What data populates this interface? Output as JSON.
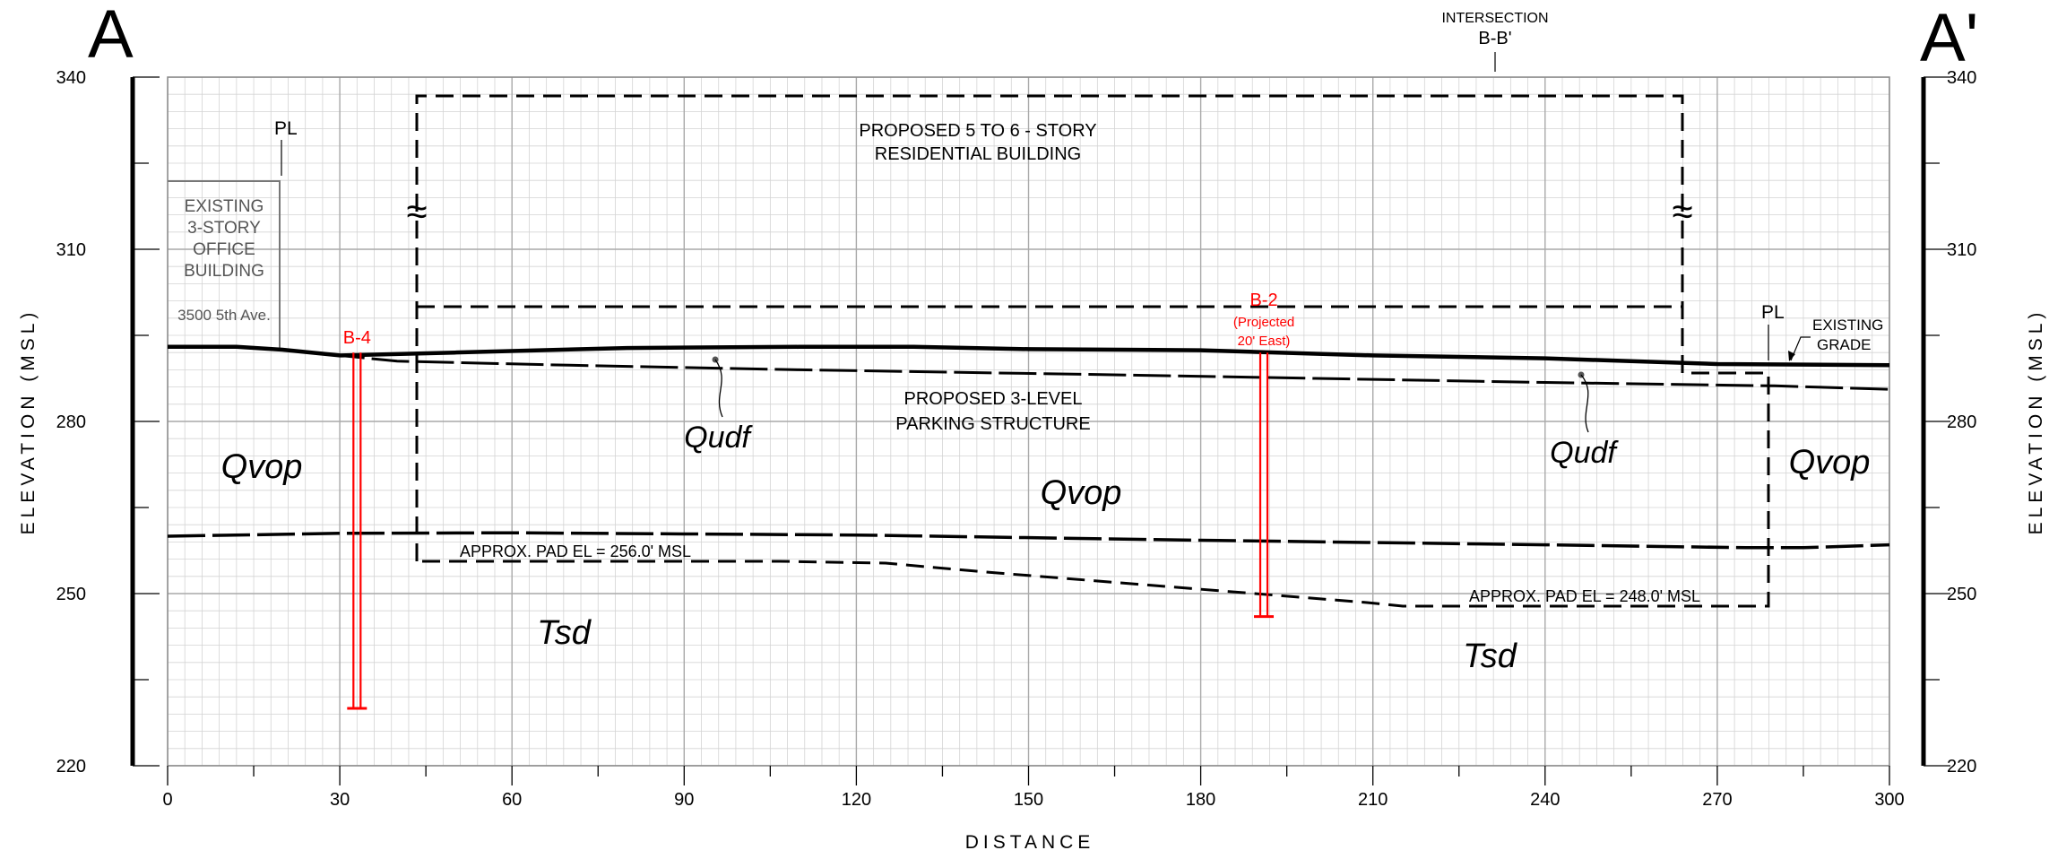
{
  "section": {
    "label_left": "A",
    "label_right": "A'",
    "x_axis_title": "DISTANCE",
    "y_axis_title": "ELEVATION (MSL)",
    "x_ticks": [
      0,
      30,
      60,
      90,
      120,
      150,
      180,
      210,
      240,
      270,
      300
    ],
    "y_ticks": [
      220,
      250,
      280,
      310,
      340
    ],
    "x_range": [
      0,
      300
    ],
    "y_range": [
      220,
      340
    ]
  },
  "annotations": {
    "intersection_label": "INTERSECTION",
    "intersection_name": "B-B'",
    "property_line": "PL",
    "existing_building": [
      "EXISTING",
      "3-STORY",
      "OFFICE",
      "BUILDING"
    ],
    "existing_address": "3500 5th Ave.",
    "proposed_building": [
      "PROPOSED 5 TO 6 - STORY",
      "RESIDENTIAL BUILDING"
    ],
    "proposed_parking": [
      "PROPOSED 3-LEVEL",
      "PARKING STRUCTURE"
    ],
    "existing_grade": [
      "EXISTING",
      "GRADE"
    ],
    "pad_left": "APPROX. PAD EL = 256.0' MSL",
    "pad_right": "APPROX. PAD EL = 248.0' MSL",
    "break_symbol": "≈"
  },
  "units": {
    "qudf": "Qudf",
    "qvop": "Qvop",
    "tsd": "Tsd"
  },
  "borings": [
    {
      "name": "B-4",
      "note": [],
      "x": 33,
      "top": 292,
      "bottom": 230
    },
    {
      "name": "B-2",
      "note": [
        "(Projected",
        "20' East)"
      ],
      "x": 191,
      "top": 292,
      "bottom": 246
    }
  ],
  "profiles": {
    "existing_grade": [
      [
        0,
        293
      ],
      [
        12,
        293
      ],
      [
        20,
        292.5
      ],
      [
        30,
        291.5
      ],
      [
        50,
        292
      ],
      [
        80,
        292.8
      ],
      [
        110,
        293
      ],
      [
        130,
        293
      ],
      [
        150,
        292.6
      ],
      [
        180,
        292.4
      ],
      [
        210,
        291.5
      ],
      [
        240,
        291
      ],
      [
        270,
        290
      ],
      [
        300,
        289.8
      ]
    ],
    "qudf_base": [
      [
        20,
        292.5
      ],
      [
        40,
        290.5
      ],
      [
        70,
        289.8
      ],
      [
        110,
        289
      ],
      [
        160,
        288.2
      ],
      [
        200,
        287.5
      ],
      [
        240,
        286.8
      ],
      [
        280,
        286.2
      ],
      [
        300,
        285.6
      ]
    ],
    "tsd_contact": [
      [
        0,
        260
      ],
      [
        30,
        260.5
      ],
      [
        60,
        260.6
      ],
      [
        120,
        260.2
      ],
      [
        180,
        259.3
      ],
      [
        240,
        258.5
      ],
      [
        275,
        258
      ],
      [
        285,
        258
      ],
      [
        300,
        258.5
      ]
    ]
  },
  "colors": {
    "boring": "#ff0000",
    "existing_building": "#777777",
    "grid_minor": "#d4d4d4",
    "grid_major": "#a9a9a9"
  }
}
